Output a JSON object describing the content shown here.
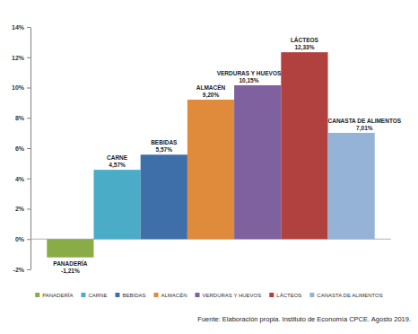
{
  "chart_data": {
    "type": "bar",
    "categories": [
      "PANADERÍA",
      "CARNE",
      "BEBIDAS",
      "ALMACÉN",
      "VERDURAS Y HUEVOS",
      "LÁCTEOS",
      "CANASTA DE ALIMENTOS"
    ],
    "values": [
      -1.21,
      4.57,
      5.57,
      9.2,
      10.15,
      12.33,
      7.01
    ],
    "value_labels": [
      "-1,21%",
      "4,57%",
      "5,57%",
      "9,20%",
      "10,15%",
      "12,33%",
      "7,01%"
    ],
    "colors": [
      "#8aac46",
      "#4aacc6",
      "#3f6fa8",
      "#e08a3c",
      "#7e619e",
      "#b0413e",
      "#95b3d7"
    ],
    "ylim": [
      -2,
      14
    ],
    "yticks": [
      {
        "value": -2,
        "label": "-2%"
      },
      {
        "value": 0,
        "label": "0%"
      },
      {
        "value": 2,
        "label": "2%"
      },
      {
        "value": 4,
        "label": "4%"
      },
      {
        "value": 6,
        "label": "6%"
      },
      {
        "value": 8,
        "label": "8%"
      },
      {
        "value": 10,
        "label": "10%"
      },
      {
        "value": 12,
        "label": "12%"
      },
      {
        "value": 14,
        "label": "14%"
      }
    ],
    "grid": false,
    "data_labels": true,
    "tick_labels": "y",
    "legend": "bottom",
    "source": "Fuente: Elaboración propia. Instituto de Economía CPCE. Agosto 2019."
  }
}
